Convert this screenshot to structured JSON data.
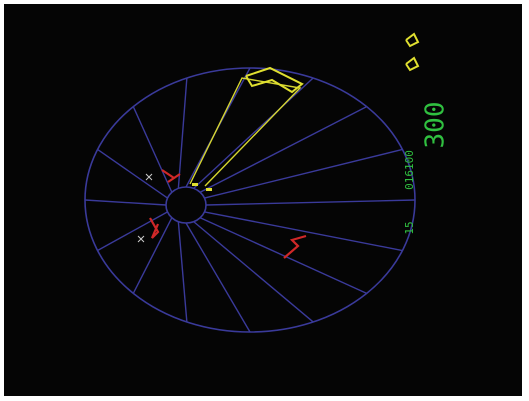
{
  "hud": {
    "score": "300",
    "high_score": "016100",
    "level": "15"
  }
}
